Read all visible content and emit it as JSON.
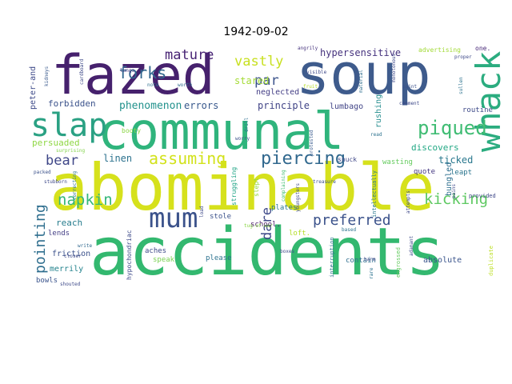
{
  "chart_data": {
    "type": "wordcloud",
    "title": "1942-09-02",
    "grid": false,
    "legend": "none",
    "words": [
      {
        "text": "accidents",
        "weight": 100,
        "color": "#33b86f"
      },
      {
        "text": "abominable",
        "weight": 98,
        "color": "#d6e11c"
      },
      {
        "text": "communal",
        "weight": 82,
        "color": "#2fb47c"
      },
      {
        "text": "soup",
        "weight": 80,
        "color": "#3e5b8c"
      },
      {
        "text": "fazed",
        "weight": 78,
        "color": "#46216d"
      },
      {
        "text": "whack",
        "weight": 46,
        "color": "#2bac7f"
      },
      {
        "text": "slap",
        "weight": 44,
        "color": "#2aa183"
      },
      {
        "text": "mum",
        "weight": 40,
        "color": "#3b528b"
      },
      {
        "text": "piercing",
        "weight": 30,
        "color": "#31688e"
      },
      {
        "text": "piqued",
        "weight": 30,
        "color": "#3fbc73"
      },
      {
        "text": "assuming",
        "weight": 28,
        "color": "#d2e21b"
      },
      {
        "text": "forks",
        "weight": 24,
        "color": "#31678e"
      },
      {
        "text": "mature",
        "weight": 24,
        "color": "#482475"
      },
      {
        "text": "vastly",
        "weight": 24,
        "color": "#c8e020"
      },
      {
        "text": "kicking",
        "weight": 22,
        "color": "#5ec962"
      },
      {
        "text": "napkin",
        "weight": 22,
        "color": "#35b779"
      },
      {
        "text": "pointing",
        "weight": 22,
        "color": "#2e6e8e"
      },
      {
        "text": "preferred",
        "weight": 22,
        "color": "#3b528b"
      },
      {
        "text": "bear",
        "weight": 20,
        "color": "#3f4788"
      },
      {
        "text": "dare",
        "weight": 18,
        "color": "#3e4989"
      },
      {
        "text": "par",
        "weight": 18,
        "color": "#3b528b"
      },
      {
        "text": "stared",
        "weight": 14,
        "color": "#a5db36"
      },
      {
        "text": "hypersensitive",
        "weight": 14,
        "color": "#46337e"
      },
      {
        "text": "phenomenon",
        "weight": 14,
        "color": "#21918c"
      },
      {
        "text": "errors",
        "weight": 14,
        "color": "#38588c"
      },
      {
        "text": "principle",
        "weight": 14,
        "color": "#414487"
      },
      {
        "text": "forbidden",
        "weight": 13,
        "color": "#3b528b"
      },
      {
        "text": "linen",
        "weight": 13,
        "color": "#2c728e"
      },
      {
        "text": "ticked",
        "weight": 13,
        "color": "#2a788e"
      },
      {
        "text": "reach",
        "weight": 12,
        "color": "#287d8e"
      },
      {
        "text": "discovers",
        "weight": 12,
        "color": "#22a884"
      },
      {
        "text": "persuaded",
        "weight": 11,
        "color": "#8fd744"
      },
      {
        "text": "peter-and",
        "weight": 11,
        "color": "#3e4a89"
      },
      {
        "text": "neglected",
        "weight": 10,
        "color": "#433e85"
      },
      {
        "text": "lumbago",
        "weight": 10,
        "color": "#414487"
      },
      {
        "text": "rushing",
        "weight": 10,
        "color": "#228c8d"
      },
      {
        "text": "bungled",
        "weight": 10,
        "color": "#2e6f8e"
      },
      {
        "text": "absolute",
        "weight": 10,
        "color": "#3a548c"
      },
      {
        "text": "friction",
        "weight": 10,
        "color": "#3b518b"
      },
      {
        "text": "merrily",
        "weight": 10,
        "color": "#25848e"
      },
      {
        "text": "bowls",
        "weight": 10,
        "color": "#3a548c"
      },
      {
        "text": "lends",
        "weight": 9,
        "color": "#433e85"
      },
      {
        "text": "plates",
        "weight": 9,
        "color": "#2a768e"
      },
      {
        "text": "school.",
        "weight": 9,
        "color": "#481769"
      },
      {
        "text": "aches",
        "weight": 9,
        "color": "#3e4989"
      },
      {
        "text": "please",
        "weight": 9,
        "color": "#2c728e"
      },
      {
        "text": "speak",
        "weight": 9,
        "color": "#7ad151"
      },
      {
        "text": "contain",
        "weight": 9,
        "color": "#2e6e8e"
      },
      {
        "text": "routine",
        "weight": 9,
        "color": "#3e4a89"
      },
      {
        "text": "quote",
        "weight": 9,
        "color": "#453781"
      },
      {
        "text": "leapt",
        "weight": 9,
        "color": "#2b758e"
      },
      {
        "text": "wasting",
        "weight": 9,
        "color": "#65cb5e"
      },
      {
        "text": "stole",
        "weight": 9,
        "color": "#3b528b"
      },
      {
        "text": "loft.",
        "weight": 9,
        "color": "#b5de2b"
      },
      {
        "text": "slept",
        "weight": 8,
        "color": "#95d840"
      },
      {
        "text": "struggling",
        "weight": 8,
        "color": "#20a486"
      },
      {
        "text": "hypochondriac",
        "weight": 8,
        "color": "#3e4a89"
      },
      {
        "text": "booty",
        "weight": 8,
        "color": "#8bd646"
      },
      {
        "text": "advertising",
        "weight": 8,
        "color": "#a2da37"
      },
      {
        "text": "one.",
        "weight": 8,
        "color": "#482878"
      },
      {
        "text": "snuck",
        "weight": 8,
        "color": "#3f4788"
      },
      {
        "text": "intellectually",
        "weight": 7,
        "color": "#2a788e"
      },
      {
        "text": "duplicate",
        "weight": 7,
        "color": "#bddf26"
      },
      {
        "text": "engrossed",
        "weight": 7,
        "color": "#63cb5f"
      },
      {
        "text": "provided",
        "weight": 7,
        "color": "#3f4788"
      },
      {
        "text": "interruption",
        "weight": 7,
        "color": "#2d708e"
      },
      {
        "text": "harm",
        "weight": 6,
        "color": "#3f4788"
      },
      {
        "text": "treasure",
        "weight": 6,
        "color": "#3b528b"
      },
      {
        "text": "youngsters",
        "weight": 6,
        "color": "#3e4989"
      },
      {
        "text": "complaining",
        "weight": 6,
        "color": "#42be71"
      },
      {
        "text": "protested",
        "weight": 6,
        "color": "#375b8d"
      },
      {
        "text": "shouted",
        "weight": 6,
        "color": "#3e4a89"
      },
      {
        "text": "write",
        "weight": 6,
        "color": "#30698e"
      },
      {
        "text": "closer",
        "weight": 6,
        "color": "#3e4989"
      },
      {
        "text": "correcting",
        "weight": 6,
        "color": "#2c728e"
      },
      {
        "text": "stubborn",
        "weight": 6,
        "color": "#3e4989"
      },
      {
        "text": "packed",
        "weight": 6,
        "color": "#3b528b"
      },
      {
        "text": "surprising",
        "weight": 6,
        "color": "#83d34b"
      },
      {
        "text": "kidneys",
        "weight": 6,
        "color": "#38598c"
      },
      {
        "text": "cardboard",
        "weight": 6,
        "color": "#3e4a89"
      },
      {
        "text": "lungs",
        "weight": 6,
        "color": "#453781"
      },
      {
        "text": "note",
        "weight": 6,
        "color": "#2d708e"
      },
      {
        "text": "worth",
        "weight": 6,
        "color": "#306a8e"
      },
      {
        "text": "angrily",
        "weight": 6,
        "color": "#46337e"
      },
      {
        "text": "visible",
        "weight": 6,
        "color": "#3e4989"
      },
      {
        "text": "fruit",
        "weight": 6,
        "color": "#b8de29"
      },
      {
        "text": "material",
        "weight": 6,
        "color": "#2e6e8e"
      },
      {
        "text": "monotonous",
        "weight": 6,
        "color": "#3e4989"
      },
      {
        "text": "proper",
        "weight": 6,
        "color": "#3e4989"
      },
      {
        "text": "sullen",
        "weight": 6,
        "color": "#2c728e"
      },
      {
        "text": "comment",
        "weight": 6,
        "color": "#3e4989"
      },
      {
        "text": "read",
        "weight": 6,
        "color": "#2c728e"
      },
      {
        "text": "paint",
        "weight": 6,
        "color": "#3b528b"
      },
      {
        "text": "pains",
        "weight": 6,
        "color": "#3e4989"
      },
      {
        "text": "rare",
        "weight": 6,
        "color": "#2c728e"
      },
      {
        "text": "adamant",
        "weight": 6,
        "color": "#3e4989"
      },
      {
        "text": "attempts",
        "weight": 6,
        "color": "#3e4989"
      },
      {
        "text": "based",
        "weight": 6,
        "color": "#2c728e"
      },
      {
        "text": "boxes",
        "weight": 6,
        "color": "#3e4989"
      },
      {
        "text": "tug-of-war",
        "weight": 6,
        "color": "#8bd646"
      },
      {
        "text": "load",
        "weight": 6,
        "color": "#3e4989"
      },
      {
        "text": "worry",
        "weight": 6,
        "color": "#3b528b"
      },
      {
        "text": "drill",
        "weight": 6,
        "color": "#2c728e"
      }
    ]
  }
}
